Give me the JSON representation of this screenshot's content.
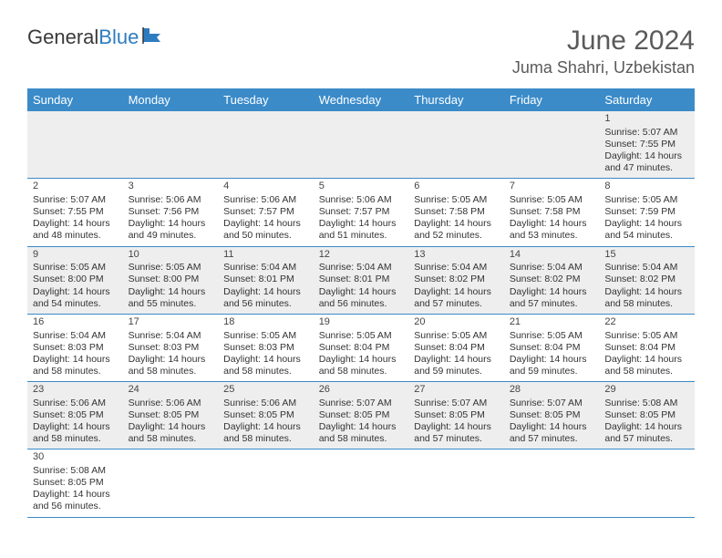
{
  "logo": {
    "text1": "General",
    "text2": "Blue"
  },
  "header": {
    "title": "June 2024",
    "location": "Juma Shahri, Uzbekistan"
  },
  "colors": {
    "headerBg": "#3b8bc9",
    "headerText": "#ffffff",
    "rowAltBg": "#eeeeee",
    "rowBg": "#ffffff",
    "borderColor": "#3b8bc9",
    "titleColor": "#5a5a5a",
    "logoBlue": "#2e7cc0"
  },
  "typography": {
    "titleFontSize": 30,
    "locationFontSize": 18,
    "headerFontSize": 13,
    "cellFontSize": 10.5
  },
  "weekdays": [
    "Sunday",
    "Monday",
    "Tuesday",
    "Wednesday",
    "Thursday",
    "Friday",
    "Saturday"
  ],
  "weeks": [
    {
      "alt": true,
      "days": [
        null,
        null,
        null,
        null,
        null,
        null,
        {
          "n": "1",
          "sunrise": "5:07 AM",
          "sunset": "7:55 PM",
          "daylight": "14 hours and 47 minutes."
        }
      ]
    },
    {
      "alt": false,
      "days": [
        {
          "n": "2",
          "sunrise": "5:07 AM",
          "sunset": "7:55 PM",
          "daylight": "14 hours and 48 minutes."
        },
        {
          "n": "3",
          "sunrise": "5:06 AM",
          "sunset": "7:56 PM",
          "daylight": "14 hours and 49 minutes."
        },
        {
          "n": "4",
          "sunrise": "5:06 AM",
          "sunset": "7:57 PM",
          "daylight": "14 hours and 50 minutes."
        },
        {
          "n": "5",
          "sunrise": "5:06 AM",
          "sunset": "7:57 PM",
          "daylight": "14 hours and 51 minutes."
        },
        {
          "n": "6",
          "sunrise": "5:05 AM",
          "sunset": "7:58 PM",
          "daylight": "14 hours and 52 minutes."
        },
        {
          "n": "7",
          "sunrise": "5:05 AM",
          "sunset": "7:58 PM",
          "daylight": "14 hours and 53 minutes."
        },
        {
          "n": "8",
          "sunrise": "5:05 AM",
          "sunset": "7:59 PM",
          "daylight": "14 hours and 54 minutes."
        }
      ]
    },
    {
      "alt": true,
      "days": [
        {
          "n": "9",
          "sunrise": "5:05 AM",
          "sunset": "8:00 PM",
          "daylight": "14 hours and 54 minutes."
        },
        {
          "n": "10",
          "sunrise": "5:05 AM",
          "sunset": "8:00 PM",
          "daylight": "14 hours and 55 minutes."
        },
        {
          "n": "11",
          "sunrise": "5:04 AM",
          "sunset": "8:01 PM",
          "daylight": "14 hours and 56 minutes."
        },
        {
          "n": "12",
          "sunrise": "5:04 AM",
          "sunset": "8:01 PM",
          "daylight": "14 hours and 56 minutes."
        },
        {
          "n": "13",
          "sunrise": "5:04 AM",
          "sunset": "8:02 PM",
          "daylight": "14 hours and 57 minutes."
        },
        {
          "n": "14",
          "sunrise": "5:04 AM",
          "sunset": "8:02 PM",
          "daylight": "14 hours and 57 minutes."
        },
        {
          "n": "15",
          "sunrise": "5:04 AM",
          "sunset": "8:02 PM",
          "daylight": "14 hours and 58 minutes."
        }
      ]
    },
    {
      "alt": false,
      "days": [
        {
          "n": "16",
          "sunrise": "5:04 AM",
          "sunset": "8:03 PM",
          "daylight": "14 hours and 58 minutes."
        },
        {
          "n": "17",
          "sunrise": "5:04 AM",
          "sunset": "8:03 PM",
          "daylight": "14 hours and 58 minutes."
        },
        {
          "n": "18",
          "sunrise": "5:05 AM",
          "sunset": "8:03 PM",
          "daylight": "14 hours and 58 minutes."
        },
        {
          "n": "19",
          "sunrise": "5:05 AM",
          "sunset": "8:04 PM",
          "daylight": "14 hours and 58 minutes."
        },
        {
          "n": "20",
          "sunrise": "5:05 AM",
          "sunset": "8:04 PM",
          "daylight": "14 hours and 59 minutes."
        },
        {
          "n": "21",
          "sunrise": "5:05 AM",
          "sunset": "8:04 PM",
          "daylight": "14 hours and 59 minutes."
        },
        {
          "n": "22",
          "sunrise": "5:05 AM",
          "sunset": "8:04 PM",
          "daylight": "14 hours and 58 minutes."
        }
      ]
    },
    {
      "alt": true,
      "days": [
        {
          "n": "23",
          "sunrise": "5:06 AM",
          "sunset": "8:05 PM",
          "daylight": "14 hours and 58 minutes."
        },
        {
          "n": "24",
          "sunrise": "5:06 AM",
          "sunset": "8:05 PM",
          "daylight": "14 hours and 58 minutes."
        },
        {
          "n": "25",
          "sunrise": "5:06 AM",
          "sunset": "8:05 PM",
          "daylight": "14 hours and 58 minutes."
        },
        {
          "n": "26",
          "sunrise": "5:07 AM",
          "sunset": "8:05 PM",
          "daylight": "14 hours and 58 minutes."
        },
        {
          "n": "27",
          "sunrise": "5:07 AM",
          "sunset": "8:05 PM",
          "daylight": "14 hours and 57 minutes."
        },
        {
          "n": "28",
          "sunrise": "5:07 AM",
          "sunset": "8:05 PM",
          "daylight": "14 hours and 57 minutes."
        },
        {
          "n": "29",
          "sunrise": "5:08 AM",
          "sunset": "8:05 PM",
          "daylight": "14 hours and 57 minutes."
        }
      ]
    },
    {
      "alt": false,
      "last": true,
      "days": [
        {
          "n": "30",
          "sunrise": "5:08 AM",
          "sunset": "8:05 PM",
          "daylight": "14 hours and 56 minutes."
        },
        null,
        null,
        null,
        null,
        null,
        null
      ]
    }
  ]
}
